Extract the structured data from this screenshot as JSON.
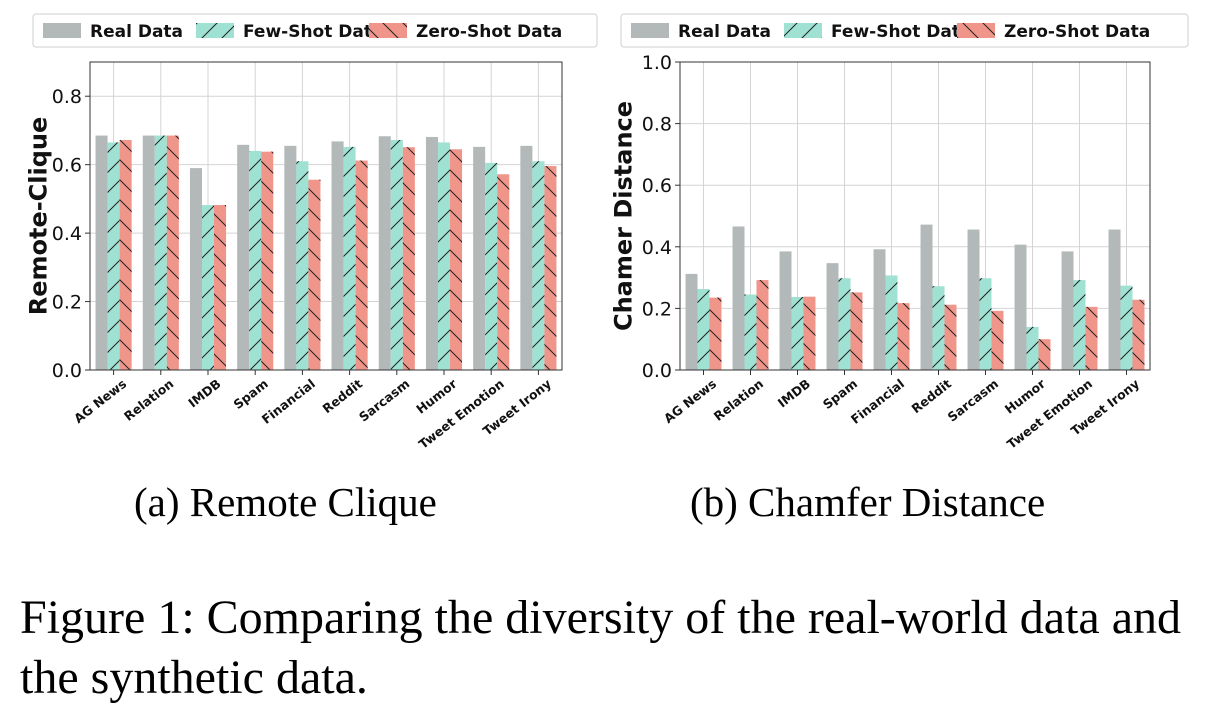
{
  "legend": {
    "entries": [
      {
        "name": "Real Data",
        "color": "#b3b9b9",
        "hatch": "none"
      },
      {
        "name": "Few-Shot Data",
        "color": "#9fe2d3",
        "hatch": "/"
      },
      {
        "name": "Zero-Shot Data",
        "color": "#f0958a",
        "hatch": "\\"
      }
    ]
  },
  "chart_data": [
    {
      "type": "bar",
      "ylabel": "Remote-Clique",
      "ylim": [
        0,
        0.9
      ],
      "yticks": [
        "0.0",
        "0.2",
        "0.4",
        "0.6",
        "0.8"
      ],
      "grid": true,
      "legend_position": "top",
      "categories": [
        "AG News",
        "Relation",
        "IMDB",
        "Spam",
        "Financial",
        "Reddit",
        "Sarcasm",
        "Humor",
        "Tweet Emotion",
        "Tweet Irony"
      ],
      "series": [
        {
          "name": "Real Data",
          "values": [
            0.685,
            0.685,
            0.59,
            0.658,
            0.655,
            0.668,
            0.683,
            0.681,
            0.652,
            0.655
          ]
        },
        {
          "name": "Few-Shot Data",
          "values": [
            0.665,
            0.685,
            0.482,
            0.64,
            0.61,
            0.652,
            0.672,
            0.665,
            0.605,
            0.61
          ]
        },
        {
          "name": "Zero-Shot Data",
          "values": [
            0.672,
            0.685,
            0.482,
            0.638,
            0.556,
            0.612,
            0.651,
            0.645,
            0.572,
            0.596
          ]
        }
      ]
    },
    {
      "type": "bar",
      "ylabel": "Chamer Distance",
      "ylim": [
        0,
        1.0
      ],
      "yticks": [
        "0.0",
        "0.2",
        "0.4",
        "0.6",
        "0.8",
        "1.0"
      ],
      "grid": true,
      "legend_position": "top",
      "categories": [
        "AG News",
        "Relation",
        "IMDB",
        "Spam",
        "Financial",
        "Reddit",
        "Sarcasm",
        "Humor",
        "Tweet Emotion",
        "Tweet Irony"
      ],
      "series": [
        {
          "name": "Real Data",
          "values": [
            0.312,
            0.466,
            0.385,
            0.347,
            0.392,
            0.472,
            0.456,
            0.407,
            0.385,
            0.456
          ]
        },
        {
          "name": "Few-Shot Data",
          "values": [
            0.263,
            0.245,
            0.237,
            0.298,
            0.307,
            0.272,
            0.298,
            0.14,
            0.292,
            0.274
          ]
        },
        {
          "name": "Zero-Shot Data",
          "values": [
            0.235,
            0.292,
            0.238,
            0.252,
            0.217,
            0.212,
            0.192,
            0.1,
            0.205,
            0.228
          ]
        }
      ]
    }
  ],
  "captions": {
    "a": "(a) Remote Clique",
    "b": "(b) Chamfer Distance",
    "figure": "Figure 1: Comparing the diversity of the real-world data and the synthetic data."
  }
}
